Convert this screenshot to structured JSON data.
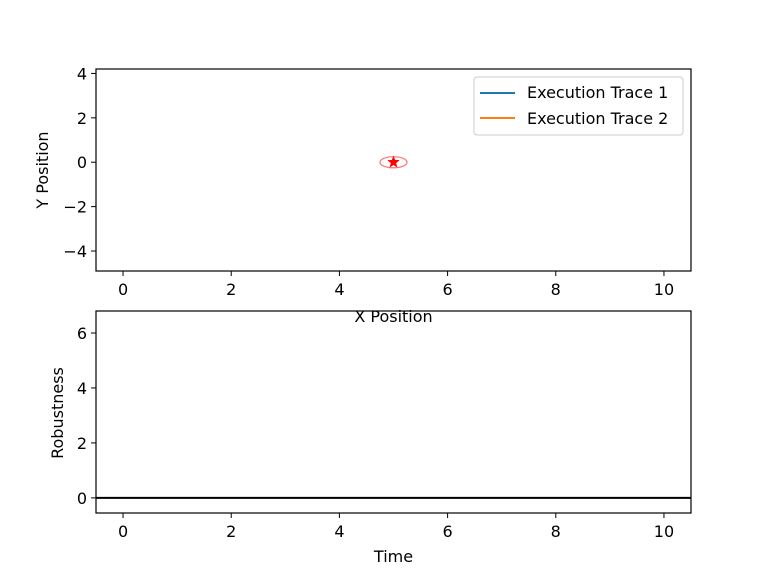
{
  "colors": {
    "trace1": "#1f77b4",
    "trace2": "#ff7f0e",
    "goal": "#ff0000",
    "zero_line": "#000000",
    "background": "#ffffff",
    "axes": "#000000"
  },
  "chart_data": [
    {
      "type": "line",
      "title": "",
      "xlabel": "X Position",
      "ylabel": "Y Position",
      "xlim": [
        -0.5,
        10.5
      ],
      "ylim": [
        -4.9,
        4.2
      ],
      "xticks": [
        0,
        2,
        4,
        6,
        8,
        10
      ],
      "yticks": [
        -4,
        -2,
        0,
        2,
        4
      ],
      "xtick_labels": [
        "0",
        "2",
        "4",
        "6",
        "8",
        "10"
      ],
      "ytick_labels": [
        "−4",
        "−2",
        "0",
        "2",
        "4"
      ],
      "grid": false,
      "legend_position": "top-right",
      "series": [
        {
          "name": "Execution Trace 1",
          "color": "#1f77b4",
          "x": [],
          "y": []
        },
        {
          "name": "Execution Trace 2",
          "color": "#ff7f0e",
          "x": [],
          "y": []
        }
      ],
      "annotations": [
        {
          "kind": "goal-marker",
          "marker": "star",
          "x": 5.0,
          "y": 0.0,
          "color": "#ff0000"
        },
        {
          "kind": "goal-region",
          "shape": "ellipse",
          "cx": 5.0,
          "cy": 0.0,
          "rx": 0.25,
          "ry": 0.25,
          "color": "#ff0000"
        }
      ]
    },
    {
      "type": "line",
      "title": "",
      "xlabel": "Time",
      "ylabel": "Robustness",
      "xlim": [
        -0.5,
        10.5
      ],
      "ylim": [
        -0.55,
        6.8
      ],
      "xticks": [
        0,
        2,
        4,
        6,
        8,
        10
      ],
      "yticks": [
        0,
        2,
        4,
        6
      ],
      "xtick_labels": [
        "0",
        "2",
        "4",
        "6",
        "8",
        "10"
      ],
      "ytick_labels": [
        "0",
        "2",
        "4",
        "6"
      ],
      "grid": false,
      "series": [
        {
          "color": "#000000",
          "x": [
            -0.5,
            10.5
          ],
          "y": [
            0,
            0
          ]
        }
      ]
    }
  ]
}
